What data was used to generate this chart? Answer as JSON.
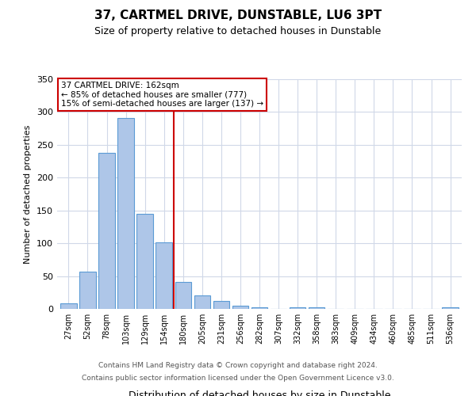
{
  "title": "37, CARTMEL DRIVE, DUNSTABLE, LU6 3PT",
  "subtitle": "Size of property relative to detached houses in Dunstable",
  "xlabel": "Distribution of detached houses by size in Dunstable",
  "ylabel": "Number of detached properties",
  "bar_labels": [
    "27sqm",
    "52sqm",
    "78sqm",
    "103sqm",
    "129sqm",
    "154sqm",
    "180sqm",
    "205sqm",
    "231sqm",
    "256sqm",
    "282sqm",
    "307sqm",
    "332sqm",
    "358sqm",
    "383sqm",
    "409sqm",
    "434sqm",
    "460sqm",
    "485sqm",
    "511sqm",
    "536sqm"
  ],
  "bar_values": [
    8,
    57,
    238,
    291,
    145,
    101,
    41,
    21,
    12,
    5,
    3,
    0,
    3,
    2,
    0,
    0,
    0,
    0,
    0,
    0,
    2
  ],
  "bar_color": "#aec6e8",
  "bar_edge_color": "#5b9bd5",
  "vline_x": 5.5,
  "vline_color": "#cc0000",
  "annotation_title": "37 CARTMEL DRIVE: 162sqm",
  "annotation_line1": "← 85% of detached houses are smaller (777)",
  "annotation_line2": "15% of semi-detached houses are larger (137) →",
  "annotation_box_color": "#cc0000",
  "ylim": [
    0,
    350
  ],
  "yticks": [
    0,
    50,
    100,
    150,
    200,
    250,
    300,
    350
  ],
  "footer1": "Contains HM Land Registry data © Crown copyright and database right 2024.",
  "footer2": "Contains public sector information licensed under the Open Government Licence v3.0.",
  "bg_color": "#ffffff",
  "grid_color": "#d0d8e8"
}
